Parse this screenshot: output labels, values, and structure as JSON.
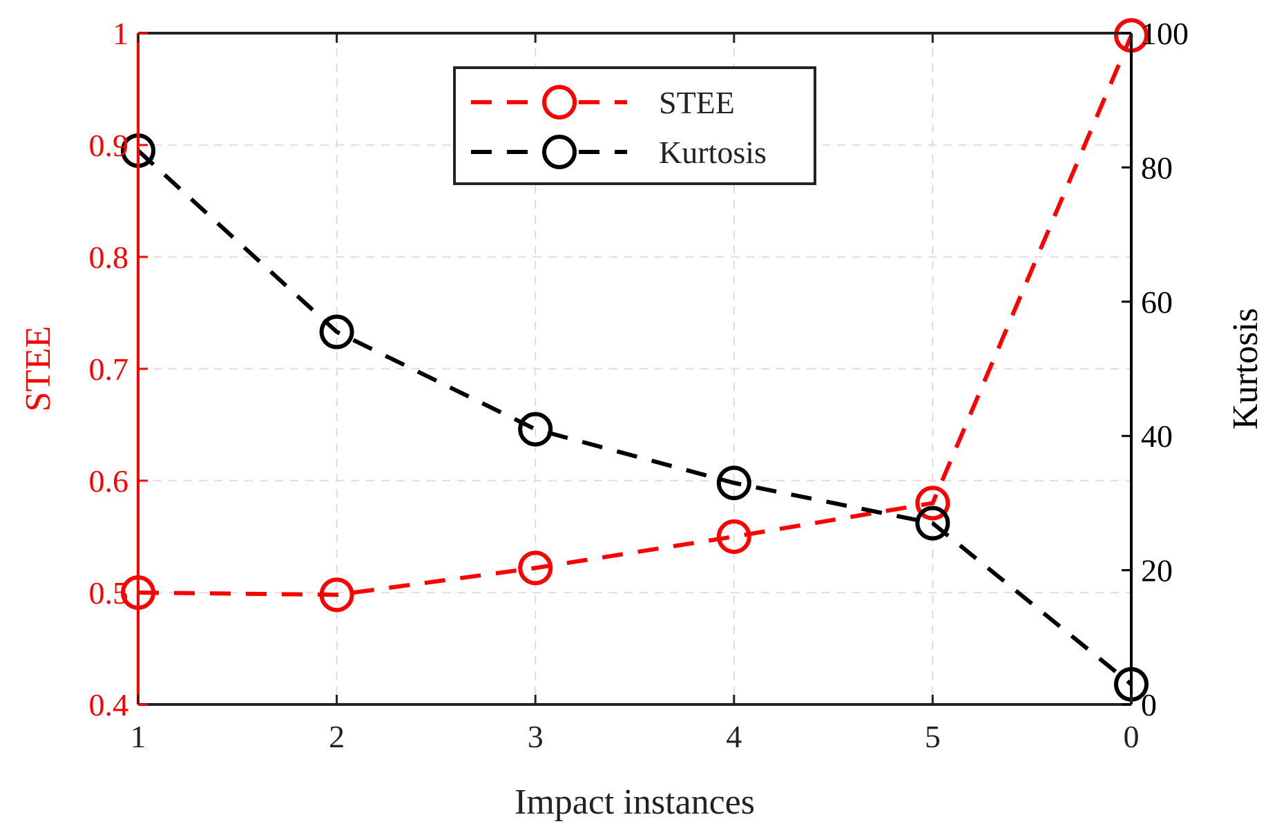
{
  "chart_data": {
    "type": "line",
    "title": "",
    "categories": [
      "1",
      "2",
      "3",
      "4",
      "5",
      "0"
    ],
    "xlabel": "Impact instances",
    "grid": true,
    "colors": {
      "left_axis": "#ff0000",
      "right_axis": "#000000",
      "grid": "#dcdcdc"
    },
    "axes": {
      "left": {
        "label": "STEE",
        "ylim": [
          0.4,
          1.0
        ],
        "ticks": [
          0.4,
          0.5,
          0.6,
          0.7,
          0.8,
          0.9,
          1.0
        ],
        "tick_labels": [
          "0.4",
          "0.5",
          "0.6",
          "0.7",
          "0.8",
          "0.9",
          "1"
        ]
      },
      "right": {
        "label": "Kurtosis",
        "ylim": [
          0,
          100
        ],
        "ticks": [
          0,
          20,
          40,
          60,
          80,
          100
        ],
        "tick_labels": [
          "0",
          "20",
          "40",
          "60",
          "80",
          "100"
        ]
      }
    },
    "series": [
      {
        "name": "STEE",
        "axis": "left",
        "color": "#ff0000",
        "line_style": "dashed",
        "marker": "circle",
        "values": [
          0.5,
          0.498,
          0.522,
          0.55,
          0.58,
          0.998
        ]
      },
      {
        "name": "Kurtosis",
        "axis": "right",
        "color": "#000000",
        "line_style": "dashed",
        "marker": "circle",
        "values": [
          82.5,
          55.5,
          41,
          33,
          27,
          3
        ]
      }
    ],
    "legend": {
      "position": "top-center",
      "entries": [
        "STEE",
        "Kurtosis"
      ]
    }
  }
}
